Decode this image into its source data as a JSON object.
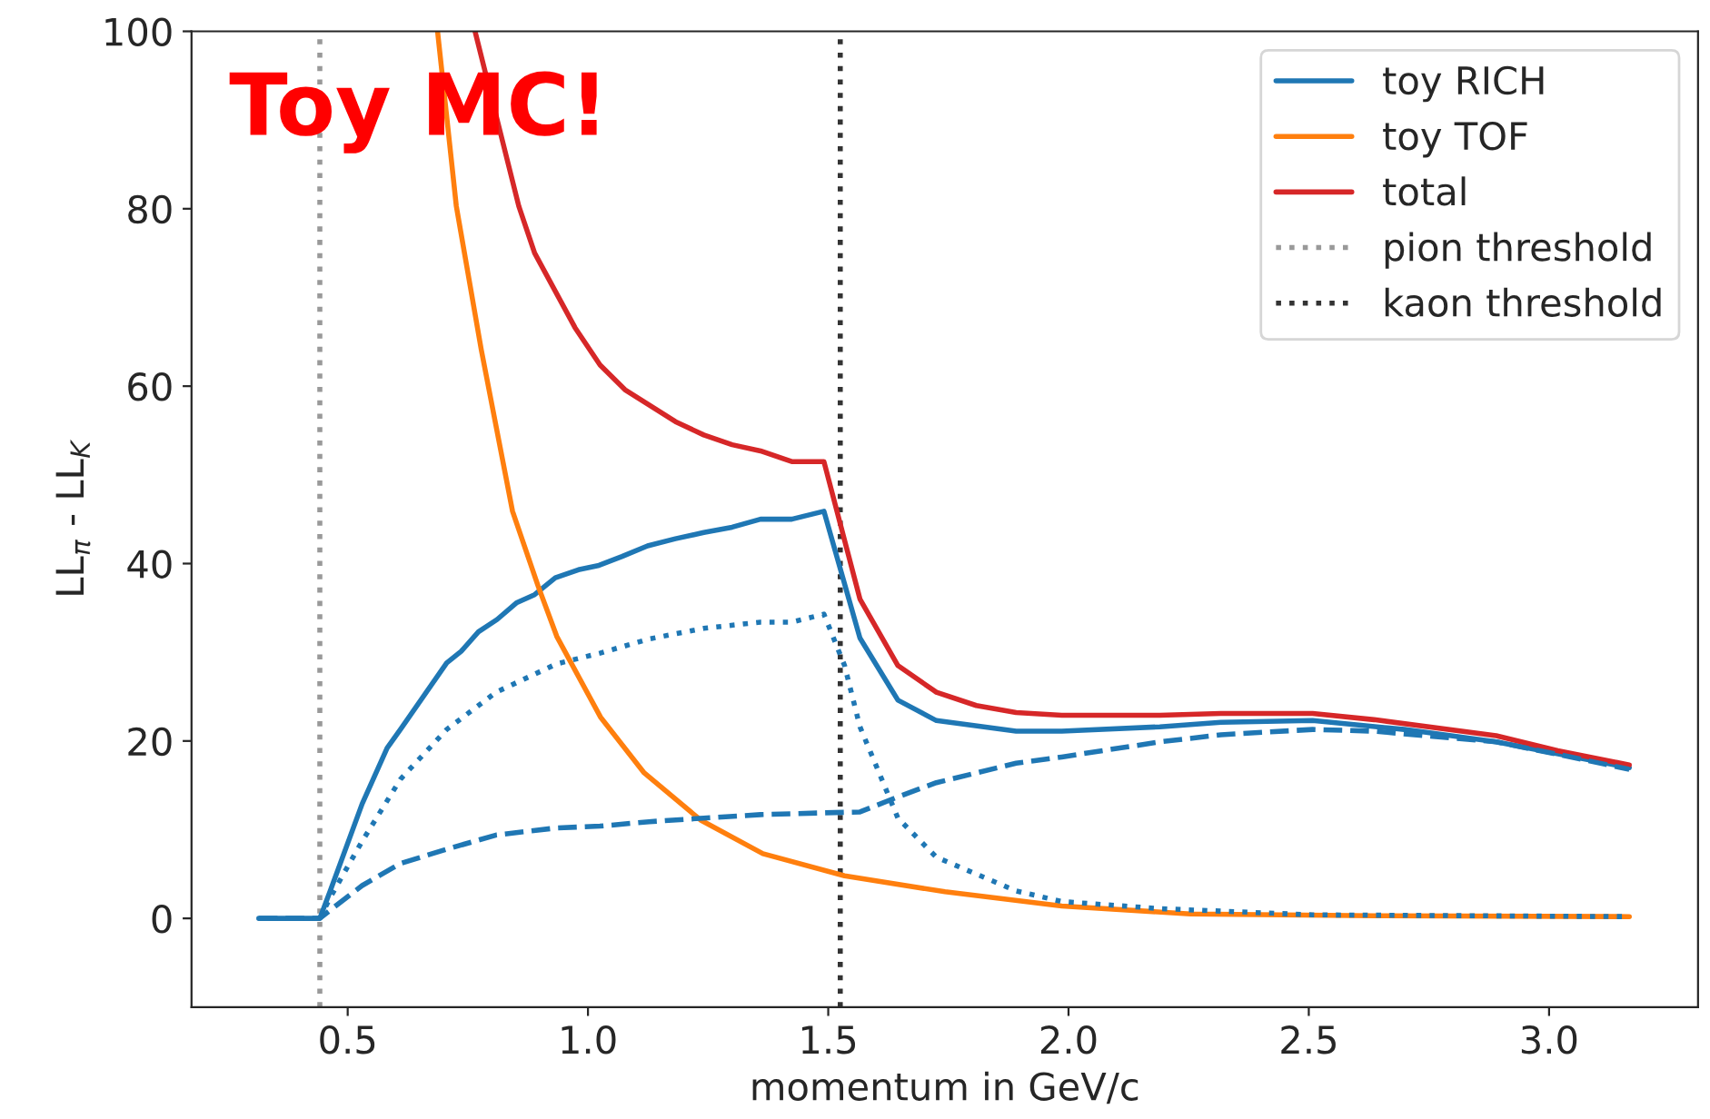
{
  "chart_data": {
    "type": "line",
    "xlabel": "momentum in GeV/c",
    "ylabel": "LL$_{π}$ - LL$_{K}$",
    "annotations": [
      "Toy MC!"
    ],
    "xlim": [
      0.175,
      3.31
    ],
    "ylim": [
      -10,
      100
    ],
    "xticks": [
      0.5,
      {
        "value": 1,
        "label": "1.0"
      },
      1.5,
      {
        "value": 2,
        "label": "2.0"
      },
      2.5,
      {
        "value": 3,
        "label": "3.0"
      }
    ],
    "yticks": [
      0,
      20,
      40,
      60,
      80,
      100
    ],
    "grid": false,
    "legend": "top right",
    "marker": "none",
    "series": [
      {
        "name": "toy RICH",
        "color": "#1f77b4",
        "line_style": "solid",
        "x": [
          0.315,
          0.442,
          0.463,
          0.53,
          0.582,
          0.611,
          0.706,
          0.736,
          0.772,
          0.811,
          0.852,
          0.889,
          0.932,
          0.98,
          1.023,
          1.071,
          1.124,
          1.182,
          1.241,
          1.3,
          1.359,
          1.424,
          1.491,
          1.566,
          1.645,
          1.725,
          1.891,
          1.986,
          2.19,
          2.317,
          2.508,
          2.699,
          2.89,
          3.167
        ],
        "values": [
          0,
          0,
          3.0,
          12.9,
          19.2,
          21.4,
          28.8,
          30.1,
          32.3,
          33.7,
          35.6,
          36.5,
          38.4,
          39.3,
          39.8,
          40.8,
          42.0,
          42.8,
          43.5,
          44.1,
          45.0,
          45.0,
          45.9,
          31.6,
          24.6,
          22.3,
          21.1,
          21.1,
          21.6,
          22.1,
          22.3,
          21.3,
          19.9,
          17.0
        ]
      },
      {
        "name": "toy TOF",
        "color": "#ff7f0e",
        "line_style": "solid",
        "x": [
          0.687,
          0.726,
          0.778,
          0.843,
          0.896,
          0.935,
          1.026,
          1.117,
          1.234,
          1.364,
          1.534,
          1.743,
          1.986,
          2.254,
          2.636,
          3.167
        ],
        "values": [
          100,
          80.3,
          64.1,
          45.9,
          37.5,
          31.8,
          22.7,
          16.4,
          11.1,
          7.3,
          4.8,
          3.0,
          1.4,
          0.5,
          0.3,
          0.2
        ]
      },
      {
        "name": "total",
        "color": "#d62728",
        "line_style": "solid",
        "x": [
          0.765,
          0.856,
          0.889,
          0.973,
          1.025,
          1.077,
          1.182,
          1.241,
          1.3,
          1.359,
          1.424,
          1.491,
          1.566,
          1.645,
          1.725,
          1.808,
          1.891,
          1.986,
          2.19,
          2.317,
          2.508,
          2.636,
          2.89,
          3.018,
          3.167
        ],
        "values": [
          100,
          80.3,
          75.0,
          66.6,
          62.4,
          59.6,
          56.0,
          54.5,
          53.4,
          52.7,
          51.5,
          51.5,
          36.0,
          28.5,
          25.5,
          24.0,
          23.2,
          22.9,
          22.9,
          23.1,
          23.1,
          22.4,
          20.6,
          18.9,
          17.3
        ]
      },
      {
        "color": "#1f77b4",
        "line_style": "dotted",
        "x": [
          0.442,
          0.463,
          0.53,
          0.61,
          0.706,
          0.809,
          0.935,
          1.025,
          1.127,
          1.241,
          1.359,
          1.424,
          1.491,
          1.534,
          1.566,
          1.645,
          1.725,
          1.891,
          1.986,
          2.19,
          2.508,
          3.167
        ],
        "values": [
          0,
          2.3,
          8.7,
          15.7,
          21.3,
          25.5,
          28.7,
          29.9,
          31.5,
          32.7,
          33.4,
          33.4,
          34.3,
          28.5,
          21.6,
          11.3,
          6.9,
          3.1,
          1.9,
          1.1,
          0.4,
          0.2
        ]
      },
      {
        "color": "#1f77b4",
        "line_style": "dashed",
        "x": [
          0.315,
          0.442,
          0.463,
          0.53,
          0.61,
          0.706,
          0.809,
          0.935,
          1.025,
          1.127,
          1.241,
          1.359,
          1.491,
          1.566,
          1.645,
          1.725,
          1.891,
          1.986,
          2.19,
          2.317,
          2.508,
          2.636,
          2.89,
          3.018,
          3.167
        ],
        "values": [
          0,
          0,
          0.9,
          3.7,
          6.2,
          7.8,
          9.4,
          10.2,
          10.4,
          10.9,
          11.3,
          11.7,
          11.9,
          12.0,
          13.7,
          15.3,
          17.5,
          18.2,
          19.9,
          20.7,
          21.3,
          21.1,
          19.9,
          18.5,
          16.8
        ]
      },
      {
        "name": "pion threshold",
        "color": "#999999",
        "line_style": "dotted",
        "x": [
          0.442,
          0.442
        ],
        "values": [
          -10,
          100
        ]
      },
      {
        "name": "kaon threshold",
        "color": "#333333",
        "line_style": "dotted",
        "x": [
          1.525,
          1.525
        ],
        "values": [
          -10,
          100
        ]
      }
    ]
  }
}
